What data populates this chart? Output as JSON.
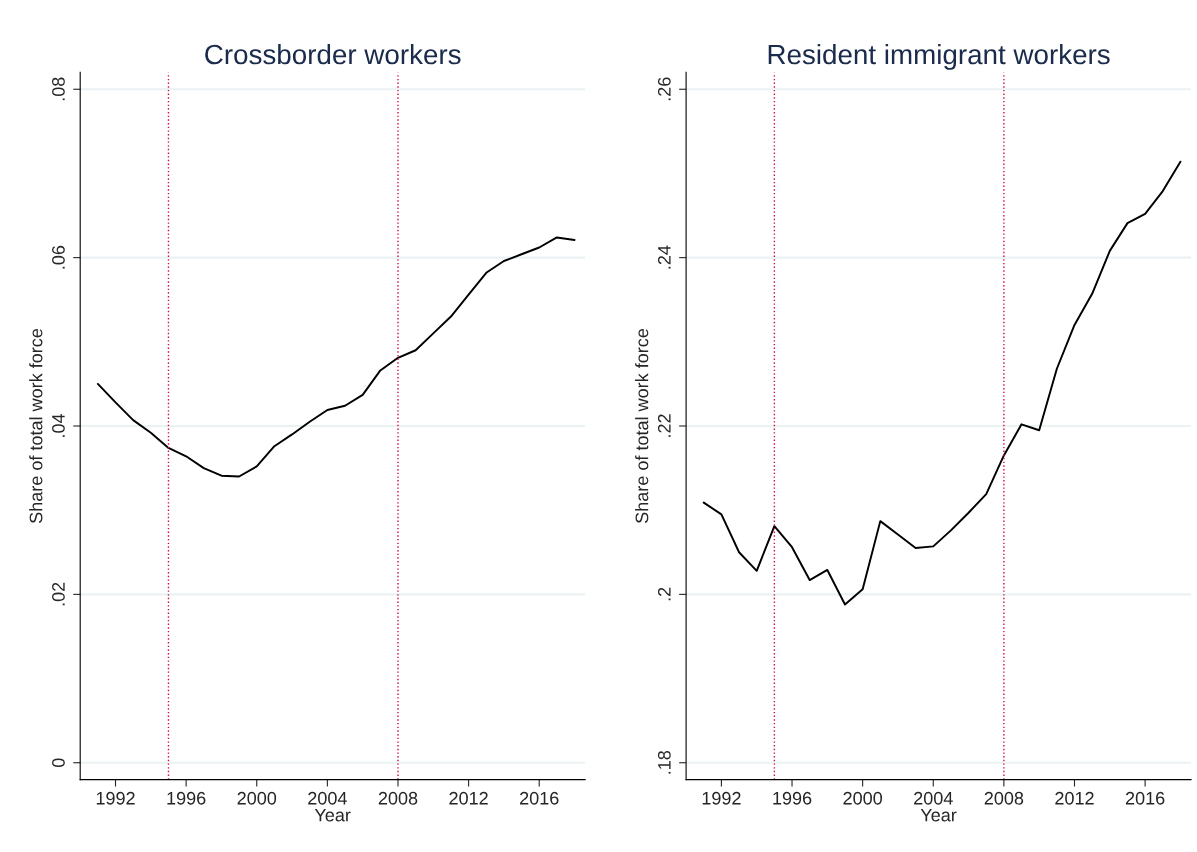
{
  "chart_data": [
    {
      "type": "line",
      "title": "Crossborder workers",
      "xlabel": "Year",
      "ylabel": "Share of total work force",
      "x": [
        1991,
        1992,
        1993,
        1994,
        1995,
        1996,
        1997,
        1998,
        1999,
        2000,
        2001,
        2002,
        2003,
        2004,
        2005,
        2006,
        2007,
        2008,
        2009,
        2010,
        2011,
        2012,
        2013,
        2014,
        2015,
        2016,
        2017,
        2018
      ],
      "series": [
        {
          "color": "#000000",
          "values": [
            0.045,
            0.0428,
            0.0407,
            0.0392,
            0.0374,
            0.0364,
            0.035,
            0.0341,
            0.034,
            0.0352,
            0.0376,
            0.039,
            0.0405,
            0.0419,
            0.0424,
            0.0437,
            0.0466,
            0.0481,
            0.049,
            0.051,
            0.053,
            0.0556,
            0.0582,
            0.0596,
            0.0604,
            0.0612,
            0.0624,
            0.0621
          ]
        }
      ],
      "xlim": [
        1990,
        2018.6
      ],
      "xticks": [
        1992,
        1996,
        2000,
        2004,
        2008,
        2012,
        2016
      ],
      "ylim": [
        -0.002,
        0.082
      ],
      "yticks": [
        {
          "value": 0,
          "label": "0"
        },
        {
          "value": 0.02,
          "label": ".02"
        },
        {
          "value": 0.04,
          "label": ".04"
        },
        {
          "value": 0.06,
          "label": ".06"
        },
        {
          "value": 0.08,
          "label": ".08"
        }
      ],
      "grid": "y",
      "legend": false,
      "line_style": "solid",
      "ref_lines": [
        {
          "axis": "x",
          "value": 1995,
          "color": "#d0103a",
          "line_style": "dotted"
        },
        {
          "axis": "x",
          "value": 2008,
          "color": "#d0103a",
          "line_style": "dotted"
        }
      ]
    },
    {
      "type": "line",
      "title": "Resident immigrant workers",
      "xlabel": "Year",
      "ylabel": "Share of total work force",
      "x": [
        1991,
        1992,
        1993,
        1994,
        1995,
        1996,
        1997,
        1998,
        1999,
        2000,
        2001,
        2002,
        2003,
        2004,
        2005,
        2006,
        2007,
        2008,
        2009,
        2010,
        2011,
        2012,
        2013,
        2014,
        2015,
        2016,
        2017,
        2018
      ],
      "series": [
        {
          "color": "#000000",
          "values": [
            0.2109,
            0.2095,
            0.205,
            0.2028,
            0.2081,
            0.2056,
            0.2017,
            0.2029,
            0.1988,
            0.2006,
            0.2087,
            0.2071,
            0.2055,
            0.2057,
            0.2076,
            0.2097,
            0.2119,
            0.2165,
            0.2202,
            0.2195,
            0.2268,
            0.232,
            0.2357,
            0.2408,
            0.2441,
            0.2452,
            0.2479,
            0.2514
          ]
        }
      ],
      "xlim": [
        1990,
        2018.6
      ],
      "xticks": [
        1992,
        1996,
        2000,
        2004,
        2008,
        2012,
        2016
      ],
      "ylim": [
        0.178,
        0.262
      ],
      "yticks": [
        {
          "value": 0.18,
          "label": ".18"
        },
        {
          "value": 0.2,
          "label": ".2"
        },
        {
          "value": 0.22,
          "label": ".22"
        },
        {
          "value": 0.24,
          "label": ".24"
        },
        {
          "value": 0.26,
          "label": ".26"
        }
      ],
      "grid": "y",
      "legend": false,
      "line_style": "solid",
      "ref_lines": [
        {
          "axis": "x",
          "value": 1995,
          "color": "#d0103a",
          "line_style": "dotted"
        },
        {
          "axis": "x",
          "value": 2008,
          "color": "#d0103a",
          "line_style": "dotted"
        }
      ]
    }
  ]
}
